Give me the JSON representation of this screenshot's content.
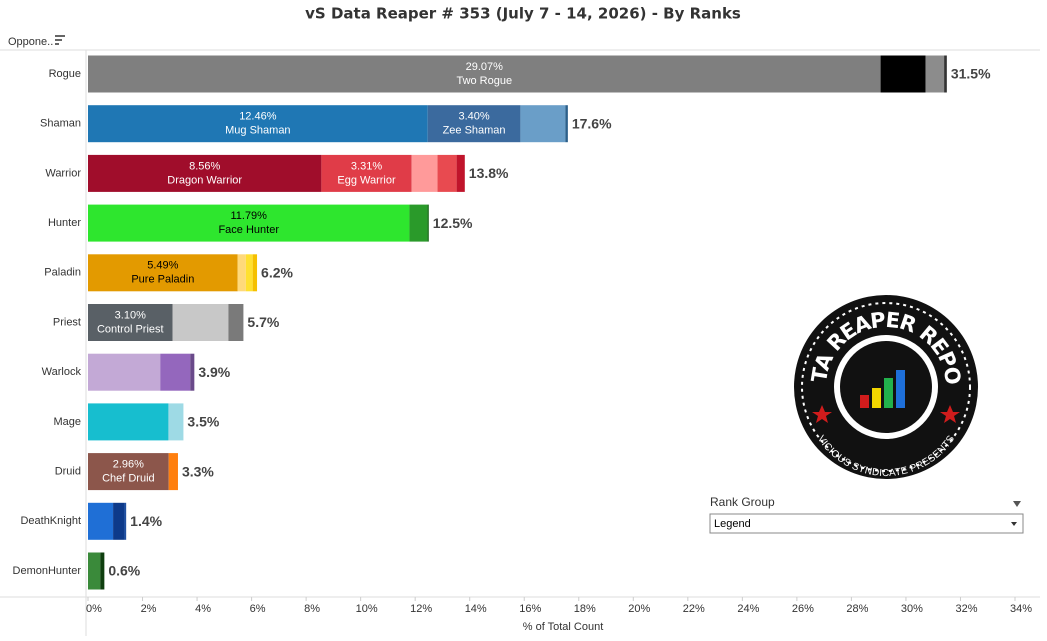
{
  "chart_data": {
    "type": "stacked-bar-h",
    "title": "vS Data Reaper # 353 (July 7 - 14, 2026) - By Ranks",
    "row_header": "Oppone..",
    "x_axis_label": "% of Total Count",
    "xlim": [
      0,
      34
    ],
    "xticks": [
      {
        "value": 0,
        "label": "0%"
      },
      {
        "value": 2,
        "label": "2%"
      },
      {
        "value": 4,
        "label": "4%"
      },
      {
        "value": 6,
        "label": "6%"
      },
      {
        "value": 8,
        "label": "8%"
      },
      {
        "value": 10,
        "label": "10%"
      },
      {
        "value": 12,
        "label": "12%"
      },
      {
        "value": 14,
        "label": "14%"
      },
      {
        "value": 16,
        "label": "16%"
      },
      {
        "value": 18,
        "label": "18%"
      },
      {
        "value": 20,
        "label": "20%"
      },
      {
        "value": 22,
        "label": "22%"
      },
      {
        "value": 24,
        "label": "24%"
      },
      {
        "value": 26,
        "label": "26%"
      },
      {
        "value": 28,
        "label": "28%"
      },
      {
        "value": 30,
        "label": "30%"
      },
      {
        "value": 32,
        "label": "32%"
      },
      {
        "value": 34,
        "label": "34%"
      }
    ],
    "rows": [
      {
        "category": "Rogue",
        "total": 31.5,
        "total_label": "31.5%",
        "segments": [
          {
            "value": 29.07,
            "value_label": "29.07%",
            "name": "Two Rogue",
            "color": "#7f7f7f",
            "label_color": "#ffffff"
          },
          {
            "value": 1.65,
            "color": "#000000"
          },
          {
            "value": 0.68,
            "color": "#8c8c8c"
          },
          {
            "value": 0.1,
            "color": "#333333"
          }
        ]
      },
      {
        "category": "Shaman",
        "total": 17.6,
        "total_label": "17.6%",
        "segments": [
          {
            "value": 12.46,
            "value_label": "12.46%",
            "name": "Mug Shaman",
            "color": "#1f77b4",
            "label_color": "#ffffff"
          },
          {
            "value": 3.4,
            "value_label": "3.40%",
            "name": "Zee Shaman",
            "color": "#3b6a9e",
            "label_color": "#ffffff"
          },
          {
            "value": 1.65,
            "color": "#6a9ec8"
          },
          {
            "value": 0.09,
            "color": "#2c5f8a"
          }
        ]
      },
      {
        "category": "Warrior",
        "total": 13.8,
        "total_label": "13.8%",
        "segments": [
          {
            "value": 8.56,
            "value_label": "8.56%",
            "name": "Dragon Warrior",
            "color": "#a00d2b",
            "label_color": "#ffffff"
          },
          {
            "value": 3.31,
            "value_label": "3.31%",
            "name": "Egg Warrior",
            "color": "#e03c48",
            "label_color": "#ffffff"
          },
          {
            "value": 0.95,
            "color": "#ff9a9a"
          },
          {
            "value": 0.7,
            "color": "#e84a50"
          },
          {
            "value": 0.3,
            "color": "#c0142b"
          }
        ]
      },
      {
        "category": "Hunter",
        "total": 12.5,
        "total_label": "12.5%",
        "segments": [
          {
            "value": 11.79,
            "value_label": "11.79%",
            "name": "Face Hunter",
            "color": "#2ee62e",
            "label_color": "#000000"
          },
          {
            "value": 0.66,
            "color": "#2a9a2a"
          },
          {
            "value": 0.05,
            "color": "#1a6a1a"
          }
        ]
      },
      {
        "category": "Paladin",
        "total": 6.2,
        "total_label": "6.2%",
        "segments": [
          {
            "value": 5.49,
            "value_label": "5.49%",
            "name": "Pure Paladin",
            "color": "#e39a00",
            "label_color": "#000000"
          },
          {
            "value": 0.3,
            "color": "#ffd97a"
          },
          {
            "value": 0.25,
            "color": "#ffe030"
          },
          {
            "value": 0.16,
            "color": "#f5c000"
          }
        ]
      },
      {
        "category": "Priest",
        "total": 5.7,
        "total_label": "5.7%",
        "segments": [
          {
            "value": 3.1,
            "value_label": "3.10%",
            "name": "Control Priest",
            "color": "#596066",
            "label_color": "#ffffff"
          },
          {
            "value": 2.05,
            "color": "#c8c8c8"
          },
          {
            "value": 0.55,
            "color": "#7a7a7a"
          }
        ]
      },
      {
        "category": "Warlock",
        "total": 3.9,
        "total_label": "3.9%",
        "segments": [
          {
            "value": 2.65,
            "color": "#c3a9d6"
          },
          {
            "value": 1.1,
            "color": "#9467bd"
          },
          {
            "value": 0.15,
            "color": "#6a4a8a"
          }
        ]
      },
      {
        "category": "Mage",
        "total": 3.5,
        "total_label": "3.5%",
        "segments": [
          {
            "value": 2.95,
            "color": "#17becf"
          },
          {
            "value": 0.55,
            "color": "#9edae5"
          }
        ]
      },
      {
        "category": "Druid",
        "total": 3.3,
        "total_label": "3.3%",
        "segments": [
          {
            "value": 2.96,
            "value_label": "2.96%",
            "name": "Chef Druid",
            "color": "#8c564b",
            "label_color": "#ffffff"
          },
          {
            "value": 0.34,
            "color": "#ff7f0e"
          }
        ]
      },
      {
        "category": "DeathKnight",
        "total": 1.4,
        "total_label": "1.4%",
        "segments": [
          {
            "value": 0.92,
            "color": "#1f6fd6"
          },
          {
            "value": 0.4,
            "color": "#0d3a8a"
          },
          {
            "value": 0.08,
            "color": "#2050a0"
          }
        ]
      },
      {
        "category": "DemonHunter",
        "total": 0.6,
        "total_label": "0.6%",
        "segments": [
          {
            "value": 0.45,
            "color": "#3a8a3a"
          },
          {
            "value": 0.15,
            "color": "#0f3f0f"
          }
        ]
      }
    ],
    "filter": {
      "label": "Rank Group",
      "value": "Legend"
    },
    "logo": {
      "top_text": "DATA REAPER REPORT",
      "bottom_text": "VICIOUS SYNDICATE PRESENTS"
    }
  }
}
